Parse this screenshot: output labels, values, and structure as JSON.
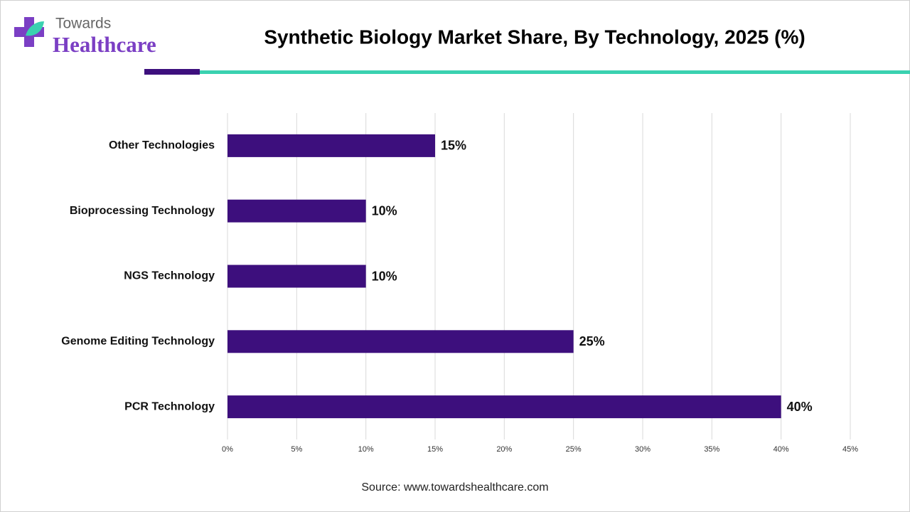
{
  "logo": {
    "line1": "Towards",
    "line2": "Healthcare"
  },
  "chart_data": {
    "type": "bar",
    "orientation": "horizontal",
    "title": "Synthetic Biology Market Share, By Technology, 2025 (%)",
    "categories": [
      "Other Technologies",
      "Bioprocessing Technology",
      "NGS Technology",
      "Genome Editing Technology",
      "PCR Technology"
    ],
    "values": [
      15,
      10,
      10,
      25,
      40
    ],
    "value_labels": [
      "15%",
      "10%",
      "10%",
      "25%",
      "40%"
    ],
    "color": "#3d0f7d",
    "xlim": [
      0,
      45
    ],
    "xticks": [
      {
        "value": 0,
        "label": "0%"
      },
      {
        "value": 5,
        "label": "5%"
      },
      {
        "value": 10,
        "label": "10%"
      },
      {
        "value": 15,
        "label": "15%"
      },
      {
        "value": 20,
        "label": "20%"
      },
      {
        "value": 25,
        "label": "25%"
      },
      {
        "value": 30,
        "label": "30%"
      },
      {
        "value": 35,
        "label": "35%"
      },
      {
        "value": 40,
        "label": "40%"
      },
      {
        "value": 45,
        "label": "45%"
      }
    ],
    "grid": true,
    "source": "Source: www.towardshealthcare.com"
  }
}
